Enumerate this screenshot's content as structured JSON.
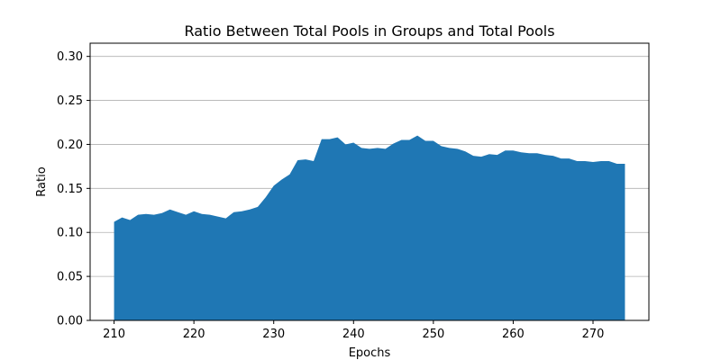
{
  "chart_data": {
    "type": "area",
    "title": "Ratio Between Total Pools in Groups and Total Pools",
    "xlabel": "Epochs",
    "ylabel": "Ratio",
    "xlim": [
      207,
      277
    ],
    "ylim": [
      0,
      0.315
    ],
    "xticks": [
      210,
      220,
      230,
      240,
      250,
      260,
      270
    ],
    "yticks": [
      0.0,
      0.05,
      0.1,
      0.15,
      0.2,
      0.25,
      0.3
    ],
    "ytick_labels": [
      "0.00",
      "0.05",
      "0.10",
      "0.15",
      "0.20",
      "0.25",
      "0.30"
    ],
    "grid": "y",
    "color": "#1f77b4",
    "x": [
      210,
      211,
      212,
      213,
      214,
      215,
      216,
      217,
      218,
      219,
      220,
      221,
      222,
      223,
      224,
      225,
      226,
      227,
      228,
      229,
      230,
      231,
      232,
      233,
      234,
      235,
      236,
      237,
      238,
      239,
      240,
      241,
      242,
      243,
      244,
      245,
      246,
      247,
      248,
      249,
      250,
      251,
      252,
      253,
      254,
      255,
      256,
      257,
      258,
      259,
      260,
      261,
      262,
      263,
      264,
      265,
      266,
      267,
      268,
      269,
      270,
      271,
      272,
      273,
      274
    ],
    "y": [
      0.112,
      0.117,
      0.114,
      0.12,
      0.121,
      0.12,
      0.122,
      0.126,
      0.123,
      0.12,
      0.124,
      0.121,
      0.12,
      0.118,
      0.116,
      0.123,
      0.124,
      0.126,
      0.129,
      0.14,
      0.153,
      0.16,
      0.166,
      0.182,
      0.183,
      0.181,
      0.206,
      0.206,
      0.208,
      0.2,
      0.202,
      0.196,
      0.195,
      0.196,
      0.195,
      0.201,
      0.205,
      0.205,
      0.21,
      0.204,
      0.204,
      0.198,
      0.196,
      0.195,
      0.192,
      0.187,
      0.186,
      0.189,
      0.188,
      0.193,
      0.193,
      0.191,
      0.19,
      0.19,
      0.188,
      0.187,
      0.184,
      0.184,
      0.181,
      0.181,
      0.18,
      0.181,
      0.181,
      0.178,
      0.178
    ]
  }
}
